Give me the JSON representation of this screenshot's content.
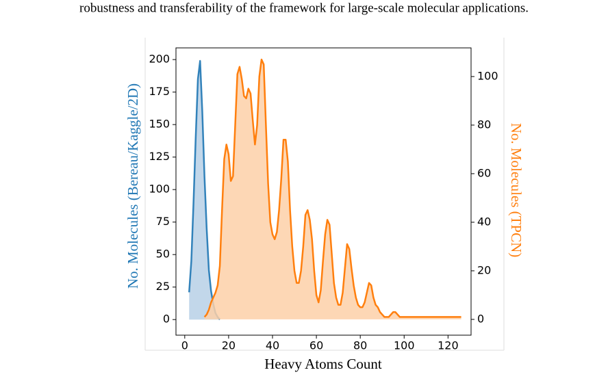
{
  "text_line": "robustness and transferability of the framework for large-scale molecular applications.",
  "chart_data": {
    "type": "line",
    "xlabel": "Heavy Atoms Count",
    "ylabel": "No. Molecules (Bereau/Kaggle/2D)",
    "y2label": "No. Molecules (TPCN)",
    "xlim": [
      -4,
      130.5
    ],
    "xticks": [
      0,
      20,
      40,
      60,
      80,
      100,
      120
    ],
    "ylim": [
      -12,
      209
    ],
    "yticks": [
      0,
      25,
      50,
      75,
      100,
      125,
      150,
      175,
      200
    ],
    "y2lim": [
      -6.5,
      111.8
    ],
    "y2ticks": [
      0,
      20,
      40,
      60,
      80,
      100
    ],
    "fill": true,
    "series": [
      {
        "name": "Bereau/Kaggle/2D",
        "color": "#1f77b4",
        "fill_color": "#b7d0e6",
        "x": [
          2,
          3,
          4,
          5,
          6,
          7,
          8,
          9,
          10,
          11,
          12,
          13,
          14,
          15,
          16
        ],
        "values": [
          21,
          45,
          90,
          140,
          185,
          199,
          160,
          110,
          70,
          38,
          22,
          12,
          5,
          2,
          0
        ]
      },
      {
        "name": "TPCN",
        "color": "#ff7f0e",
        "fill_color": "#fdd0a8",
        "axis": "y2",
        "x": [
          9,
          10,
          11,
          12,
          13,
          14,
          15,
          16,
          17,
          18,
          19,
          20,
          21,
          22,
          23,
          24,
          25,
          26,
          27,
          28,
          29,
          30,
          31,
          32,
          33,
          34,
          35,
          36,
          37,
          38,
          39,
          40,
          41,
          42,
          43,
          44,
          45,
          46,
          47,
          48,
          49,
          50,
          51,
          52,
          53,
          54,
          55,
          56,
          57,
          58,
          59,
          60,
          61,
          62,
          63,
          64,
          65,
          66,
          67,
          68,
          69,
          70,
          71,
          72,
          73,
          74,
          75,
          76,
          77,
          78,
          79,
          80,
          81,
          82,
          83,
          84,
          85,
          86,
          87,
          88,
          89,
          90,
          91,
          92,
          93,
          94,
          95,
          96,
          97,
          98,
          99,
          100,
          126
        ],
        "values": [
          1,
          2,
          4,
          7,
          9,
          11,
          14,
          22,
          45,
          66,
          72,
          68,
          57,
          59,
          80,
          101,
          104,
          99,
          92,
          91,
          95,
          93,
          82,
          72,
          80,
          100,
          107,
          105,
          80,
          56,
          40,
          35,
          33,
          36,
          45,
          58,
          74,
          74,
          65,
          45,
          30,
          20,
          15,
          15,
          20,
          30,
          43,
          45,
          41,
          33,
          20,
          10,
          7,
          12,
          24,
          35,
          41,
          39,
          27,
          15,
          9,
          6,
          6,
          11,
          21,
          31,
          29,
          21,
          14,
          9,
          6,
          5,
          5,
          7,
          11,
          15,
          14,
          9,
          6,
          5,
          3,
          2,
          1,
          1,
          1,
          2,
          3,
          3,
          2,
          1,
          1,
          1,
          1
        ]
      }
    ]
  }
}
